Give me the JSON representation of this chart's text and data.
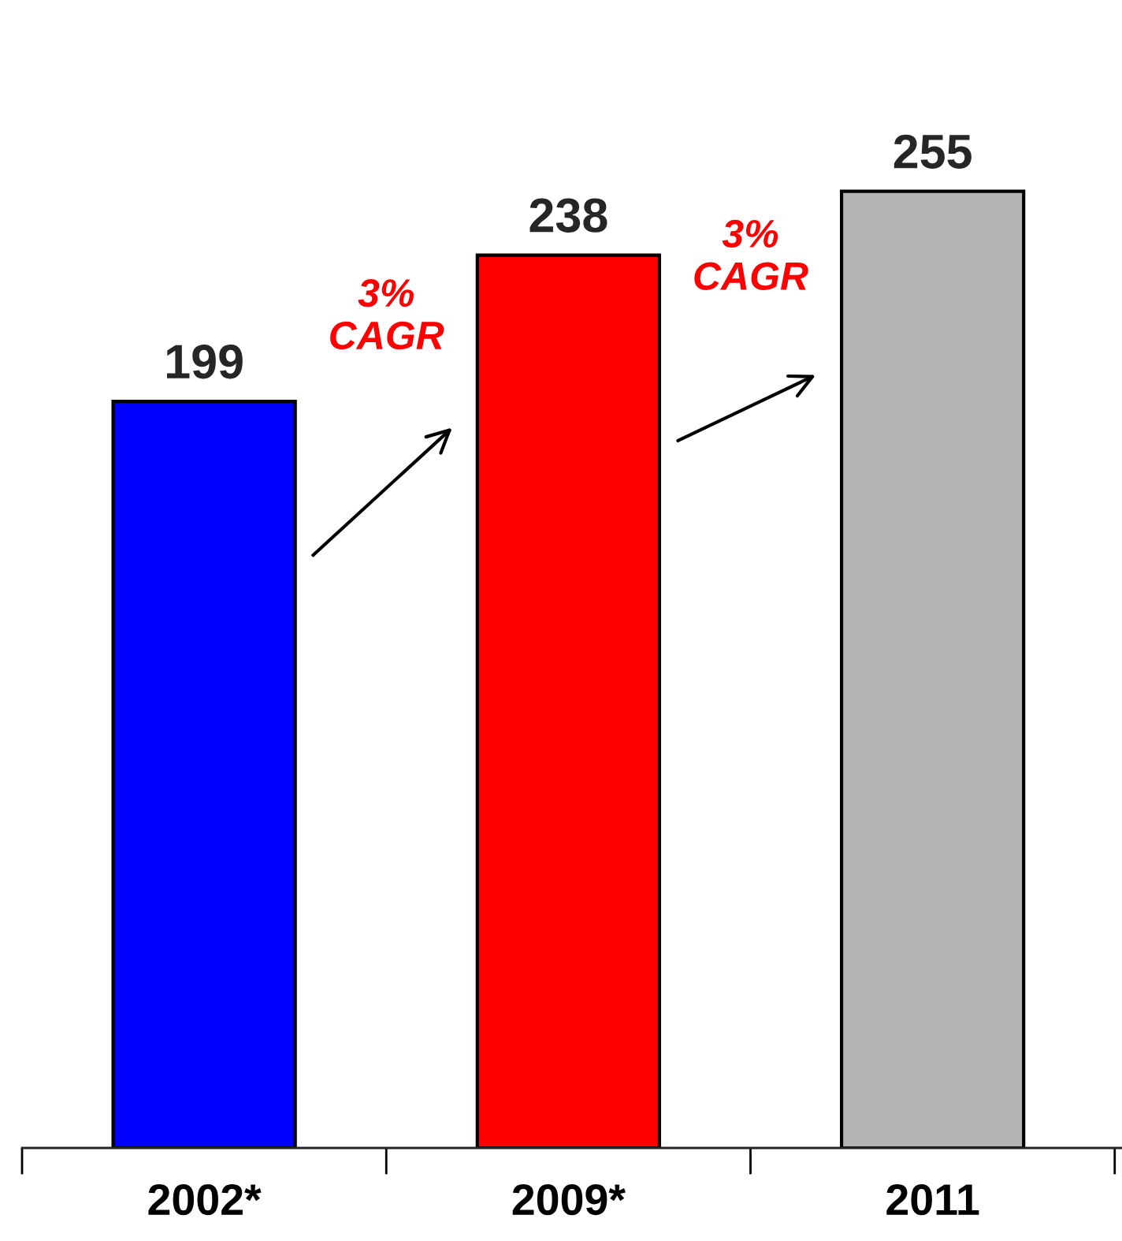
{
  "chart_data": {
    "type": "bar",
    "categories": [
      "2002*",
      "2009*",
      "2011"
    ],
    "values": [
      199,
      238,
      255
    ],
    "colors": [
      "#0000ff",
      "#ff0000",
      "#b4b4b4"
    ],
    "data_labels": true,
    "annotations": [
      "3%\nCAGR",
      "3%\nCAGR"
    ]
  }
}
